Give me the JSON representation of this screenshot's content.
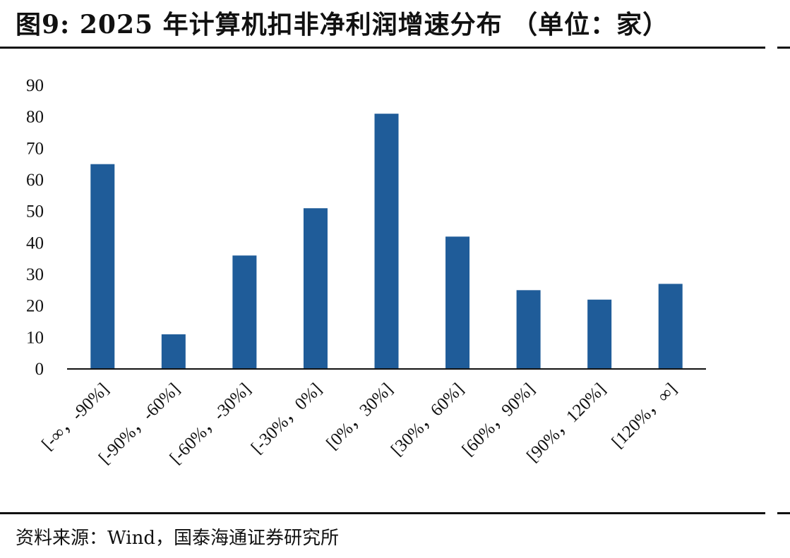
{
  "header": {
    "title": "图9:  2025 年计算机扣非净利润增速分布 （单位：家）"
  },
  "footer": {
    "source": "资料来源：Wind，国泰海通证券研究所"
  },
  "chart_data": {
    "type": "bar",
    "title": "图9:  2025 年计算机扣非净利润增速分布 （单位：家）",
    "xlabel": "",
    "ylabel": "",
    "categories": [
      "[-∞，-90%]",
      "[-90%，-60%]",
      "[-60%，-30%]",
      "[-30%，0%]",
      "[0%，30%]",
      "[30%，60%]",
      "[60%，90%]",
      "[90%，120%]",
      "[120%，∞]"
    ],
    "values": [
      65,
      11,
      36,
      51,
      81,
      42,
      25,
      22,
      27
    ],
    "ylim": [
      0,
      90
    ],
    "yticks": [
      0,
      10,
      20,
      30,
      40,
      50,
      60,
      70,
      80,
      90
    ],
    "grid": false,
    "legend": "none",
    "bar_color": "#1F5C99"
  }
}
